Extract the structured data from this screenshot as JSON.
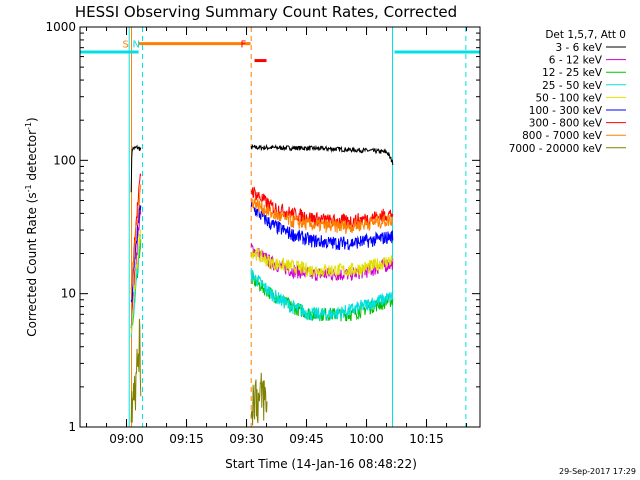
{
  "chart_data": {
    "type": "line",
    "title": "HESSI Observing Summary Count Rates, Corrected",
    "ylabel_main": "Corrected Count Rate (s",
    "ylabel_sup1": "-1",
    "ylabel_mid": " detector",
    "ylabel_sup2": "-1",
    "ylabel_end": ")",
    "xlabel": "Start Time (14-Jan-16 08:48:22)",
    "timestamp": "29-Sep-2017 17:29",
    "yscale": "log",
    "ylim": [
      1,
      1000
    ],
    "xlim": [
      "08:48:22",
      "10:28:22"
    ],
    "x_ticks": [
      "09:00",
      "09:15",
      "09:30",
      "09:45",
      "10:00",
      "10:15"
    ],
    "y_ticks": [
      "1",
      "10",
      "100",
      "1000"
    ],
    "legend_title": "Det 1,5,7, Att 0",
    "legend_position": "top-right",
    "gaps": [
      [
        "09:03",
        "09:31"
      ],
      [
        "10:07",
        "10:28"
      ]
    ],
    "series": [
      {
        "name": "3 - 6 keV",
        "color": "#000000",
        "seg1": [
          [
            0,
            60
          ],
          [
            0.1,
            95
          ],
          [
            0.2,
            122
          ],
          [
            1.5,
            125
          ],
          [
            2.5,
            120
          ]
        ],
        "seg2": [
          [
            0,
            125
          ],
          [
            10,
            124
          ],
          [
            20,
            122
          ],
          [
            30,
            118
          ],
          [
            34,
            115
          ],
          [
            35.5,
            95
          ]
        ]
      },
      {
        "name": "6 - 12 keV",
        "color": "#d000d0",
        "seg1": [
          [
            0,
            6
          ],
          [
            1,
            15
          ],
          [
            2,
            35
          ],
          [
            2.5,
            40
          ]
        ],
        "seg2": [
          [
            0,
            22
          ],
          [
            5,
            17
          ],
          [
            10,
            15
          ],
          [
            15,
            14
          ],
          [
            20,
            14
          ],
          [
            25,
            14
          ],
          [
            30,
            15
          ],
          [
            35.5,
            17
          ]
        ]
      },
      {
        "name": "12 - 25 keV",
        "color": "#00c000",
        "seg1": [
          [
            0,
            5
          ],
          [
            1,
            10
          ],
          [
            2,
            20
          ],
          [
            2.5,
            25
          ]
        ],
        "seg2": [
          [
            0,
            13
          ],
          [
            5,
            10
          ],
          [
            10,
            8
          ],
          [
            15,
            7
          ],
          [
            20,
            7
          ],
          [
            25,
            7
          ],
          [
            30,
            8
          ],
          [
            35.5,
            9
          ]
        ]
      },
      {
        "name": "25 - 50 keV",
        "color": "#00e0e0",
        "seg1": [
          [
            0,
            5
          ],
          [
            1,
            10
          ],
          [
            2,
            22
          ],
          [
            2.5,
            28
          ]
        ],
        "seg2": [
          [
            0,
            14
          ],
          [
            5,
            10
          ],
          [
            10,
            8
          ],
          [
            15,
            7
          ],
          [
            20,
            7
          ],
          [
            25,
            7.5
          ],
          [
            30,
            8.5
          ],
          [
            35.5,
            9.5
          ]
        ]
      },
      {
        "name": "50 - 100 keV",
        "color": "#e0e000",
        "seg1": [
          [
            0,
            5
          ],
          [
            1,
            12
          ],
          [
            2,
            25
          ],
          [
            2.5,
            30
          ]
        ],
        "seg2": [
          [
            0,
            21
          ],
          [
            5,
            17
          ],
          [
            10,
            16
          ],
          [
            15,
            15
          ],
          [
            20,
            15
          ],
          [
            25,
            15
          ],
          [
            30,
            16
          ],
          [
            35.5,
            18
          ]
        ]
      },
      {
        "name": "100 - 300 keV",
        "color": "#0000ff",
        "seg1": [
          [
            0,
            8
          ],
          [
            1,
            20
          ],
          [
            2,
            40
          ],
          [
            2.5,
            50
          ]
        ],
        "seg2": [
          [
            0,
            45
          ],
          [
            5,
            33
          ],
          [
            10,
            28
          ],
          [
            15,
            25
          ],
          [
            20,
            24
          ],
          [
            25,
            24
          ],
          [
            30,
            25
          ],
          [
            35.5,
            27
          ]
        ]
      },
      {
        "name": "300 - 800 keV",
        "color": "#ff0000",
        "seg1": [
          [
            0,
            10
          ],
          [
            1,
            30
          ],
          [
            2,
            60
          ],
          [
            2.5,
            85
          ]
        ],
        "seg2": [
          [
            0,
            60
          ],
          [
            5,
            45
          ],
          [
            10,
            40
          ],
          [
            15,
            37
          ],
          [
            20,
            35
          ],
          [
            25,
            35
          ],
          [
            30,
            37
          ],
          [
            35.5,
            40
          ]
        ]
      },
      {
        "name": "800 - 7000 keV",
        "color": "#ff8000",
        "seg1": [
          [
            0,
            9
          ],
          [
            1,
            25
          ],
          [
            2,
            50
          ],
          [
            2.5,
            70
          ]
        ],
        "seg2": [
          [
            0,
            50
          ],
          [
            5,
            40
          ],
          [
            10,
            35
          ],
          [
            15,
            33
          ],
          [
            20,
            32
          ],
          [
            25,
            32
          ],
          [
            30,
            34
          ],
          [
            35.5,
            36
          ]
        ]
      },
      {
        "name": "7000 - 20000 keV",
        "color": "#808000",
        "seg1": [
          [
            0,
            1.2
          ],
          [
            0.5,
            2.5
          ],
          [
            1.2,
            2
          ],
          [
            1.7,
            3.5
          ],
          [
            2.0,
            4.5
          ],
          [
            2.5,
            2
          ]
        ],
        "seg2": [
          [
            0,
            1.4
          ],
          [
            1,
            1.9
          ],
          [
            2,
            1.5
          ],
          [
            3,
            1.8
          ],
          [
            4,
            1.3
          ]
        ]
      }
    ],
    "saa_bars": [
      {
        "color": "#00e0e0",
        "y": 650,
        "from": "08:48:22",
        "to": "09:03"
      },
      {
        "color": "#00e0e0",
        "y": 650,
        "from": "10:07",
        "to": "10:28:22"
      }
    ],
    "flag_bars": [
      {
        "color": "#ff8000",
        "y": 750,
        "from": "09:03",
        "to": "09:31"
      },
      {
        "color": "#ff0000",
        "y": 560,
        "from": "09:32",
        "to": "09:35"
      }
    ],
    "markers": [
      {
        "label": "S",
        "color": "#ff8000",
        "time": "09:01:30"
      },
      {
        "label": "N",
        "color": "#00e0e0",
        "time": "09:04"
      },
      {
        "label": "F",
        "color": "#ff0000",
        "time": "09:31"
      }
    ],
    "vlines": [
      {
        "time": "08:48:22",
        "color": "#00e0e0",
        "style": "solid"
      },
      {
        "time": "09:00:40",
        "color": "#00e0e0",
        "style": "solid"
      },
      {
        "time": "09:01:15",
        "color": "#ff8000",
        "style": "solid"
      },
      {
        "time": "09:04:00",
        "color": "#00e0e0",
        "style": "dashed"
      },
      {
        "time": "09:31:10",
        "color": "#ff8000",
        "style": "dashed"
      },
      {
        "time": "10:06:30",
        "color": "#00e0e0",
        "style": "solid"
      },
      {
        "time": "10:24:50",
        "color": "#00e0e0",
        "style": "dashed"
      }
    ]
  }
}
